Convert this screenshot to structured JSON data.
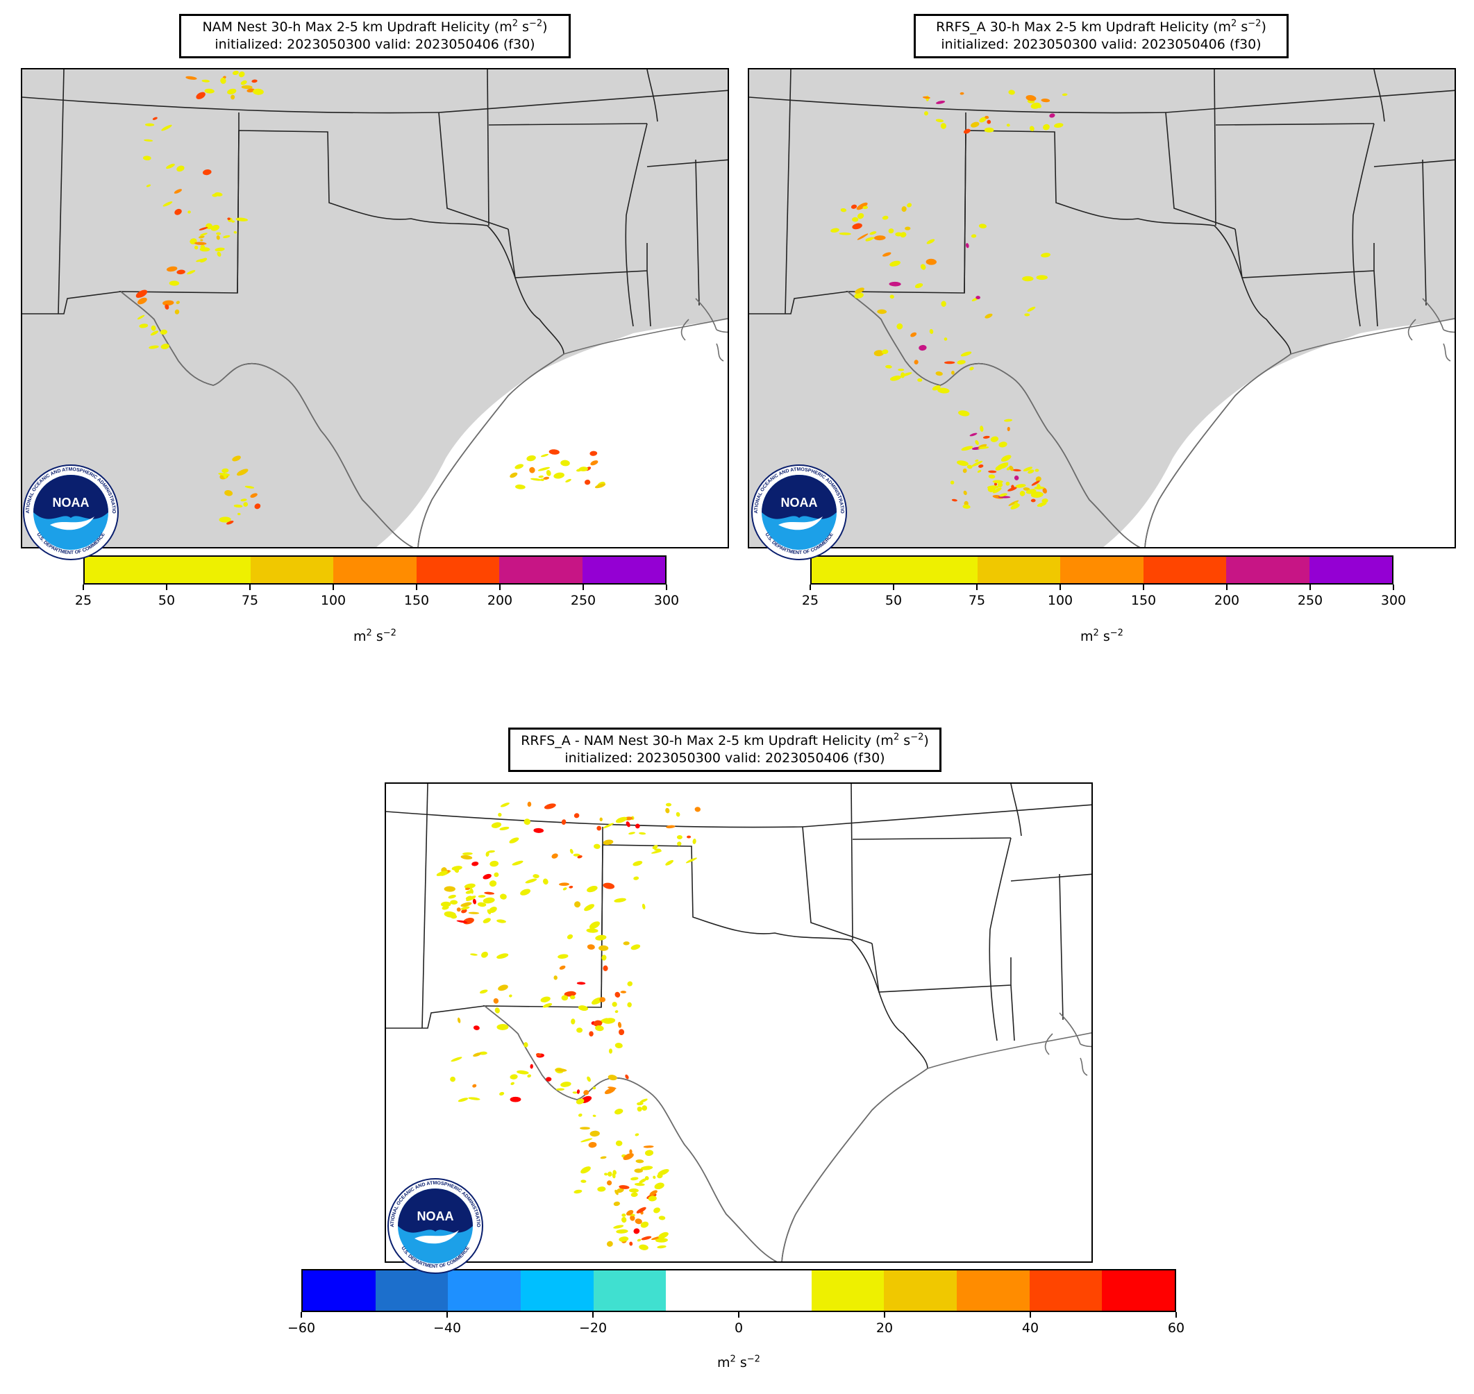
{
  "panels": [
    {
      "title_line1_pre": "NAM Nest 30-h Max 2-5 km Updraft Helicity (m",
      "title_line1_post": ")",
      "title_line2": "initialized: 2023050300 valid: 2023050406 (f30)",
      "colorbar": {
        "ticks": [
          "25",
          "50",
          "75",
          "100",
          "150",
          "200",
          "250",
          "300"
        ],
        "colors": [
          "#eef000",
          "#eef000",
          "#f0c800",
          "#ff8c00",
          "#ff4500",
          "#c71585",
          "#9400d3"
        ],
        "unit_label": "m"
      }
    },
    {
      "title_line1_pre": "RRFS_A 30-h Max 2-5 km Updraft Helicity (m",
      "title_line1_post": ")",
      "title_line2": "initialized: 2023050300 valid: 2023050406 (f30)",
      "colorbar": {
        "ticks": [
          "25",
          "50",
          "75",
          "100",
          "150",
          "200",
          "250",
          "300"
        ],
        "colors": [
          "#eef000",
          "#eef000",
          "#f0c800",
          "#ff8c00",
          "#ff4500",
          "#c71585",
          "#9400d3"
        ],
        "unit_label": "m"
      }
    },
    {
      "title_line1_pre": "RRFS_A - NAM Nest 30-h Max 2-5 km Updraft Helicity (m",
      "title_line1_post": ")",
      "title_line2": "initialized: 2023050300 valid: 2023050406 (f30)",
      "colorbar": {
        "ticks": [
          "−60",
          "−40",
          "−20",
          "0",
          "20",
          "40",
          "60"
        ],
        "colors": [
          "#0000ff",
          "#1c6fcc",
          "#1e90ff",
          "#00bfff",
          "#40e0d0",
          "#ffffff",
          "#ffffff",
          "#eef000",
          "#f0c800",
          "#ff8c00",
          "#ff4500",
          "#ff0000"
        ],
        "unit_label": "m"
      }
    }
  ],
  "unit_superscripts": {
    "sq": "2",
    "inv2": "−2",
    "space_s": " s"
  },
  "logo": {
    "text": "NOAA",
    "ring_top": "NATIONAL OCEANIC AND ATMOSPHERIC ADMINISTRATION",
    "ring_bottom": "U.S. DEPARTMENT OF COMMERCE"
  },
  "colors": {
    "land": "#d3d3d3",
    "water": "#ffffff",
    "border": "#222222",
    "coast": "#6e6e6e",
    "noaa_dark": "#0a1f6e",
    "noaa_light": "#1ca0e8"
  }
}
